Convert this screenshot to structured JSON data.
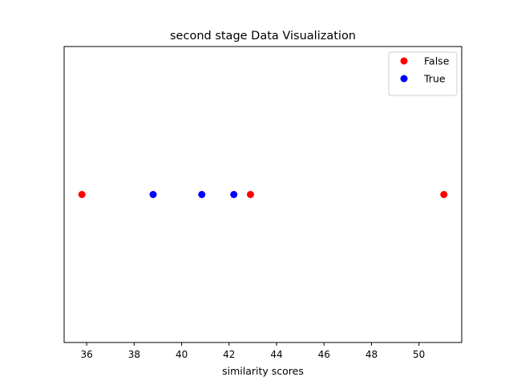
{
  "chart_data": {
    "type": "scatter",
    "title": "second stage Data Visualization",
    "xlabel": "similarity scores",
    "ylabel": "",
    "xlim": [
      35.05,
      51.8
    ],
    "ylim": [
      -1,
      1
    ],
    "xticks": [
      36,
      38,
      40,
      42,
      44,
      46,
      48,
      50
    ],
    "yticks": [],
    "grid": false,
    "legend_position": "top-right",
    "series": [
      {
        "name": "False",
        "color": "#ff0000",
        "x": [
          35.8,
          42.9,
          51.05
        ],
        "y": [
          0,
          0,
          0
        ]
      },
      {
        "name": "True",
        "color": "#0000ff",
        "x": [
          38.8,
          40.85,
          42.2
        ],
        "y": [
          0,
          0,
          0
        ]
      }
    ]
  }
}
